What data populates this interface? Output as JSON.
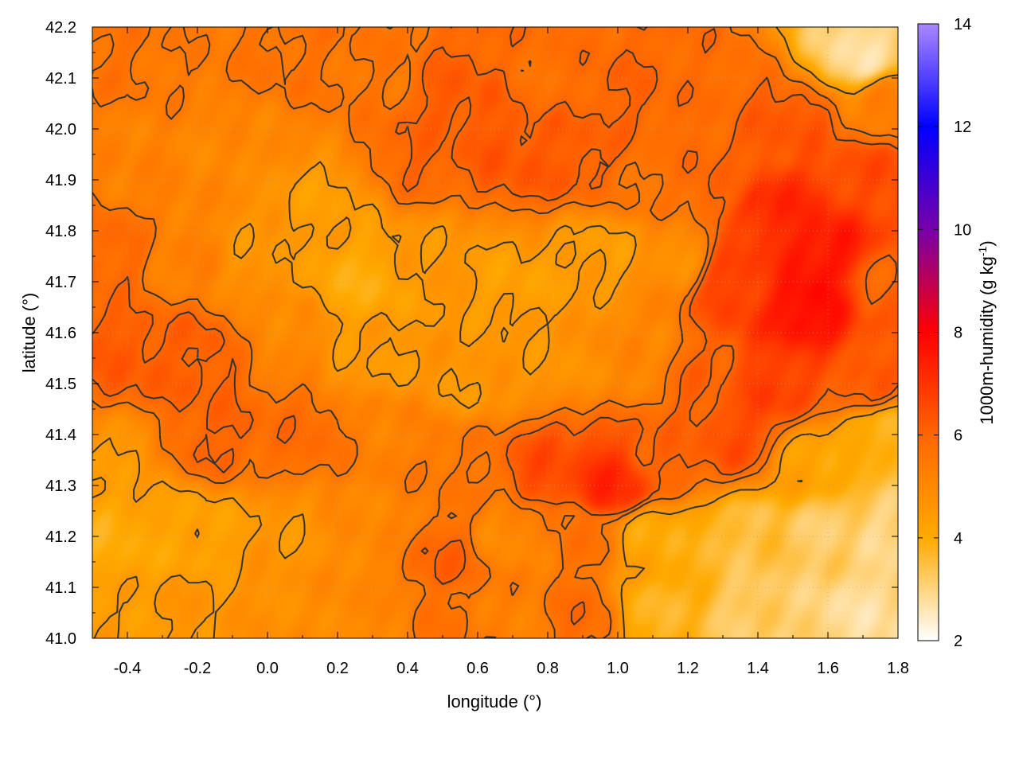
{
  "chart_data": {
    "type": "heatmap",
    "title": "",
    "xlabel": "longitude (°)",
    "ylabel": "latitude (°)",
    "colorbar_label": "1000m-humidity (g kg",
    "colorbar_label_sup": "-1",
    "colorbar_label_end": ")",
    "xlim": [
      -0.5,
      1.8
    ],
    "ylim": [
      41.0,
      42.2
    ],
    "zlim": [
      2,
      14
    ],
    "x_ticks": [
      -0.4,
      -0.2,
      0.0,
      0.2,
      0.4,
      0.6,
      0.8,
      1.0,
      1.2,
      1.4,
      1.6,
      1.8
    ],
    "x_tick_labels": [
      "-0.4",
      "-0.2",
      "0.0",
      "0.2",
      "0.4",
      "0.6",
      "0.8",
      "1.0",
      "1.2",
      "1.4",
      "1.6",
      "1.8"
    ],
    "y_ticks": [
      41.0,
      41.1,
      41.2,
      41.3,
      41.4,
      41.5,
      41.6,
      41.7,
      41.8,
      41.9,
      42.0,
      42.1,
      42.2
    ],
    "y_tick_labels": [
      "41.0",
      "41.1",
      "41.2",
      "41.3",
      "41.4",
      "41.5",
      "41.6",
      "41.7",
      "41.8",
      "41.9",
      "42.0",
      "42.1",
      "42.2"
    ],
    "z_ticks": [
      2,
      4,
      6,
      8,
      10,
      12,
      14
    ],
    "z_tick_labels": [
      "2",
      "4",
      "6",
      "8",
      "10",
      "12",
      "14"
    ],
    "colormap": [
      {
        "z": 2,
        "color": "#ffffff"
      },
      {
        "z": 4,
        "color": "#ffaa00"
      },
      {
        "z": 6,
        "color": "#ff6600"
      },
      {
        "z": 8,
        "color": "#ff0000"
      },
      {
        "z": 10,
        "color": "#7700aa"
      },
      {
        "z": 12,
        "color": "#0000ff"
      },
      {
        "z": 14,
        "color": "#aa88ff"
      }
    ],
    "contour_levels": [
      4.5,
      5.5,
      6.0
    ],
    "contour_color": "#333333",
    "grid": true,
    "field_anchors": [
      {
        "x": -0.45,
        "y": 42.15,
        "z": 5.6
      },
      {
        "x": -0.2,
        "y": 42.15,
        "z": 5.4
      },
      {
        "x": 0.05,
        "y": 42.15,
        "z": 5.6
      },
      {
        "x": 0.3,
        "y": 42.1,
        "z": 5.5
      },
      {
        "x": 0.55,
        "y": 42.05,
        "z": 6.2
      },
      {
        "x": 0.8,
        "y": 42.1,
        "z": 5.7
      },
      {
        "x": 1.0,
        "y": 42.05,
        "z": 6.0
      },
      {
        "x": 1.25,
        "y": 42.05,
        "z": 5.8
      },
      {
        "x": 1.5,
        "y": 42.0,
        "z": 6.3
      },
      {
        "x": 1.7,
        "y": 42.15,
        "z": 2.8
      },
      {
        "x": 1.78,
        "y": 42.05,
        "z": 5.2
      },
      {
        "x": -0.4,
        "y": 41.95,
        "z": 5.2
      },
      {
        "x": -0.1,
        "y": 41.95,
        "z": 5.0
      },
      {
        "x": 0.15,
        "y": 41.85,
        "z": 4.4
      },
      {
        "x": 0.45,
        "y": 41.95,
        "z": 6.0
      },
      {
        "x": 0.7,
        "y": 41.95,
        "z": 6.3
      },
      {
        "x": 0.85,
        "y": 41.95,
        "z": 6.2
      },
      {
        "x": 1.1,
        "y": 41.9,
        "z": 5.6
      },
      {
        "x": 1.3,
        "y": 41.9,
        "z": 6.0
      },
      {
        "x": 1.45,
        "y": 41.85,
        "z": 7.2
      },
      {
        "x": 1.6,
        "y": 41.75,
        "z": 7.6
      },
      {
        "x": 1.75,
        "y": 41.9,
        "z": 6.5
      },
      {
        "x": -0.45,
        "y": 41.75,
        "z": 5.9
      },
      {
        "x": -0.25,
        "y": 41.75,
        "z": 5.2
      },
      {
        "x": 0.0,
        "y": 41.75,
        "z": 4.6
      },
      {
        "x": 0.25,
        "y": 41.7,
        "z": 4.0
      },
      {
        "x": 0.5,
        "y": 41.75,
        "z": 4.6
      },
      {
        "x": 0.7,
        "y": 41.7,
        "z": 4.3
      },
      {
        "x": 0.95,
        "y": 41.75,
        "z": 4.4
      },
      {
        "x": 1.15,
        "y": 41.75,
        "z": 4.8
      },
      {
        "x": 1.35,
        "y": 41.7,
        "z": 6.8
      },
      {
        "x": 1.55,
        "y": 41.65,
        "z": 7.8
      },
      {
        "x": 1.75,
        "y": 41.7,
        "z": 6.0
      },
      {
        "x": -0.4,
        "y": 41.55,
        "z": 6.2
      },
      {
        "x": -0.2,
        "y": 41.55,
        "z": 6.1
      },
      {
        "x": 0.05,
        "y": 41.6,
        "z": 5.0
      },
      {
        "x": 0.3,
        "y": 41.55,
        "z": 4.5
      },
      {
        "x": 0.55,
        "y": 41.5,
        "z": 4.6
      },
      {
        "x": 0.8,
        "y": 41.55,
        "z": 4.6
      },
      {
        "x": 1.05,
        "y": 41.55,
        "z": 5.0
      },
      {
        "x": 1.25,
        "y": 41.5,
        "z": 6.0
      },
      {
        "x": 1.45,
        "y": 41.5,
        "z": 6.8
      },
      {
        "x": 1.7,
        "y": 41.5,
        "z": 6.2
      },
      {
        "x": -0.45,
        "y": 41.35,
        "z": 4.5
      },
      {
        "x": -0.15,
        "y": 41.4,
        "z": 6.0
      },
      {
        "x": 0.1,
        "y": 41.4,
        "z": 5.8
      },
      {
        "x": 0.35,
        "y": 41.4,
        "z": 5.2
      },
      {
        "x": 0.55,
        "y": 41.35,
        "z": 5.5
      },
      {
        "x": 0.8,
        "y": 41.33,
        "z": 6.5
      },
      {
        "x": 0.98,
        "y": 41.3,
        "z": 7.2
      },
      {
        "x": 1.15,
        "y": 41.35,
        "z": 6.0
      },
      {
        "x": 1.35,
        "y": 41.4,
        "z": 6.5
      },
      {
        "x": 1.55,
        "y": 41.35,
        "z": 4.2
      },
      {
        "x": 1.75,
        "y": 41.4,
        "z": 3.8
      },
      {
        "x": -0.45,
        "y": 41.2,
        "z": 4.0
      },
      {
        "x": -0.2,
        "y": 41.2,
        "z": 4.2
      },
      {
        "x": 0.05,
        "y": 41.2,
        "z": 4.6
      },
      {
        "x": 0.3,
        "y": 41.2,
        "z": 5.0
      },
      {
        "x": 0.5,
        "y": 41.15,
        "z": 6.0
      },
      {
        "x": 0.7,
        "y": 41.2,
        "z": 5.0
      },
      {
        "x": 0.9,
        "y": 41.2,
        "z": 5.6
      },
      {
        "x": 1.1,
        "y": 41.2,
        "z": 4.0
      },
      {
        "x": 1.35,
        "y": 41.2,
        "z": 3.5
      },
      {
        "x": 1.6,
        "y": 41.2,
        "z": 3.2
      },
      {
        "x": 1.78,
        "y": 41.2,
        "z": 3.0
      },
      {
        "x": -0.45,
        "y": 41.03,
        "z": 4.4
      },
      {
        "x": -0.2,
        "y": 41.05,
        "z": 4.6
      },
      {
        "x": 0.05,
        "y": 41.05,
        "z": 4.8
      },
      {
        "x": 0.3,
        "y": 41.05,
        "z": 5.0
      },
      {
        "x": 0.5,
        "y": 41.05,
        "z": 5.6
      },
      {
        "x": 0.7,
        "y": 41.05,
        "z": 5.2
      },
      {
        "x": 0.9,
        "y": 41.05,
        "z": 5.8
      },
      {
        "x": 1.1,
        "y": 41.05,
        "z": 3.8
      },
      {
        "x": 1.4,
        "y": 41.05,
        "z": 3.2
      },
      {
        "x": 1.7,
        "y": 41.05,
        "z": 2.8
      }
    ]
  }
}
